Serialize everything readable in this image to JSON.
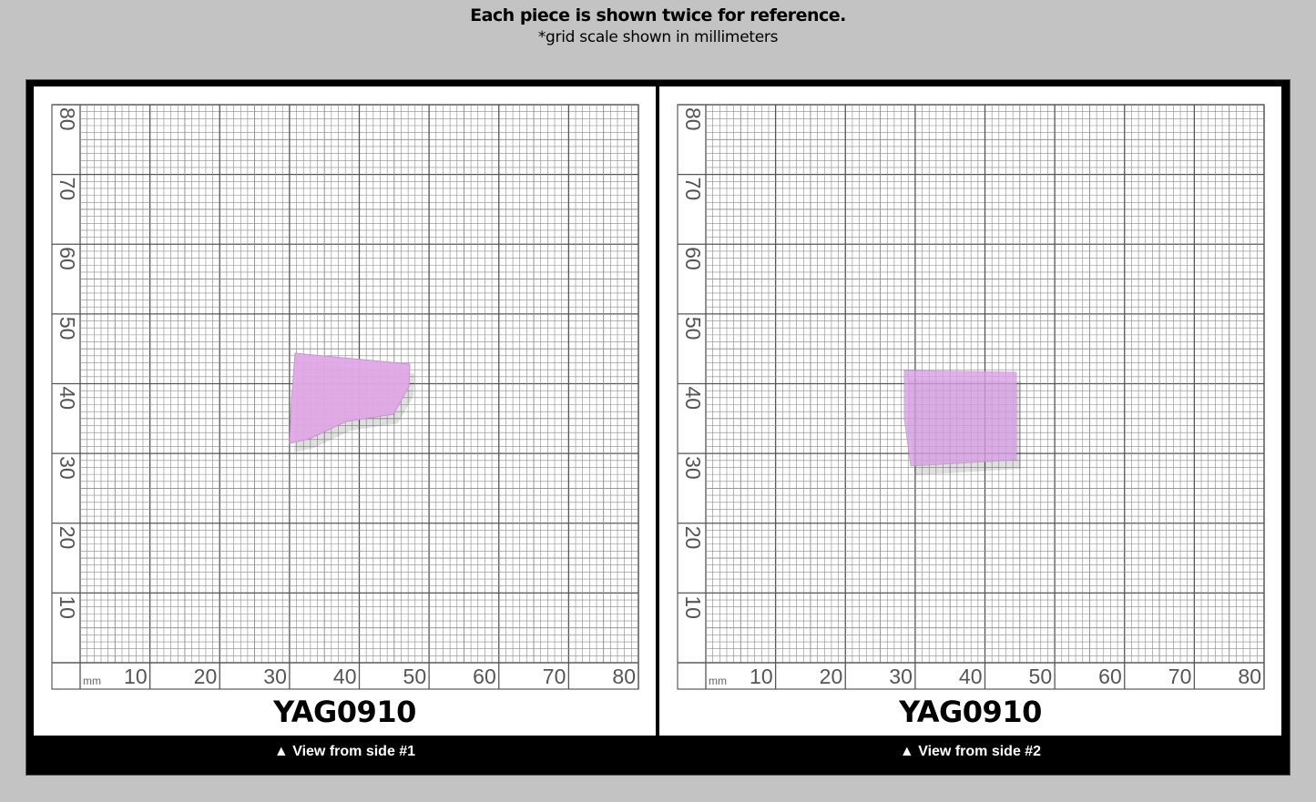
{
  "header": {
    "title": "Each piece is shown twice for reference.",
    "subtitle": "*grid scale shown in millimeters"
  },
  "grid": {
    "unit": "mm",
    "y_labels": [
      "80",
      "70",
      "60",
      "50",
      "40",
      "30",
      "20",
      "10"
    ],
    "x_labels": [
      "10",
      "20",
      "30",
      "40",
      "50",
      "60",
      "70",
      "80"
    ]
  },
  "panels": [
    {
      "code": "YAG0910",
      "caption": "▲ View from side #1",
      "crystal_color": "#e0a8e6"
    },
    {
      "code": "YAG0910",
      "caption": "▲ View from side #2",
      "crystal_color": "#d9a0e6"
    }
  ]
}
